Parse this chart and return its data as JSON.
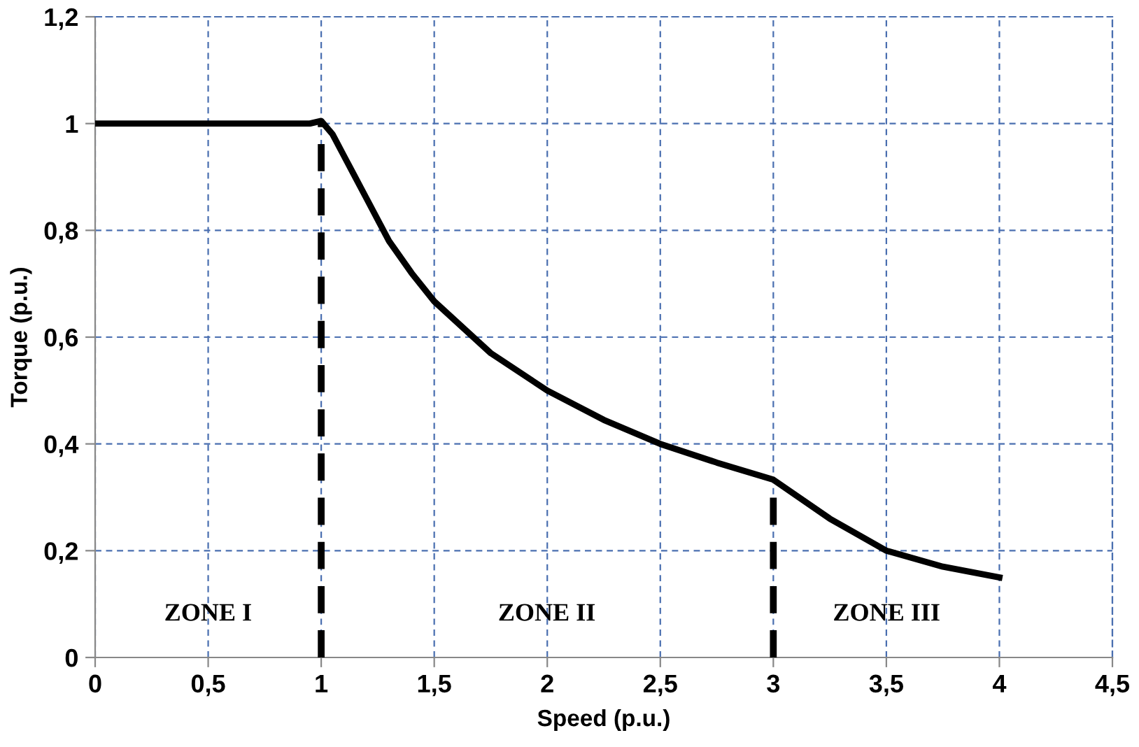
{
  "chart_data": {
    "type": "line",
    "xlabel": "Speed (p.u.)",
    "ylabel": "Torque (p.u.)",
    "series": [
      {
        "color": "#000000",
        "line_style": "solid",
        "x": [
          0,
          0.5,
          0.95,
          1,
          1.05,
          1.1,
          1.2,
          1.3,
          1.4,
          1.5,
          1.75,
          2,
          2.25,
          2.5,
          2.75,
          3,
          3.25,
          3.5,
          3.75,
          4
        ],
        "values": [
          1,
          1,
          1,
          1.005,
          0.98,
          0.94,
          0.86,
          0.78,
          0.72,
          0.667,
          0.57,
          0.5,
          0.445,
          0.4,
          0.365,
          0.333,
          0.26,
          0.2,
          0.17,
          0.15
        ]
      },
      {
        "color": "#000000",
        "line_style": "dashed",
        "x": [
          1,
          1
        ],
        "values": [
          0,
          1
        ]
      },
      {
        "color": "#000000",
        "line_style": "dashed",
        "x": [
          3,
          3
        ],
        "values": [
          0,
          0.333
        ]
      }
    ],
    "annotations": [
      "ZONE I",
      "ZONE II",
      "ZONE III"
    ],
    "xlim": [
      0,
      4.5
    ],
    "xticks": [
      0,
      {
        "value": 0.5,
        "label": "0,5"
      },
      1,
      {
        "value": 1.5,
        "label": "1,5"
      },
      2,
      {
        "value": 2.5,
        "label": "2,5"
      },
      3,
      {
        "value": 3.5,
        "label": "3,5"
      },
      4,
      {
        "value": 4.5,
        "label": "4,5"
      }
    ],
    "ylim": [
      0,
      1.2
    ],
    "yticks": [
      0,
      {
        "value": 0.2,
        "label": "0,2"
      },
      {
        "value": 0.4,
        "label": "0,4"
      },
      {
        "value": 0.6,
        "label": "0,6"
      },
      {
        "value": 0.8,
        "label": "0,8"
      },
      1,
      {
        "value": 1.2,
        "label": "1,2"
      }
    ],
    "grid": true,
    "marker": "none"
  }
}
